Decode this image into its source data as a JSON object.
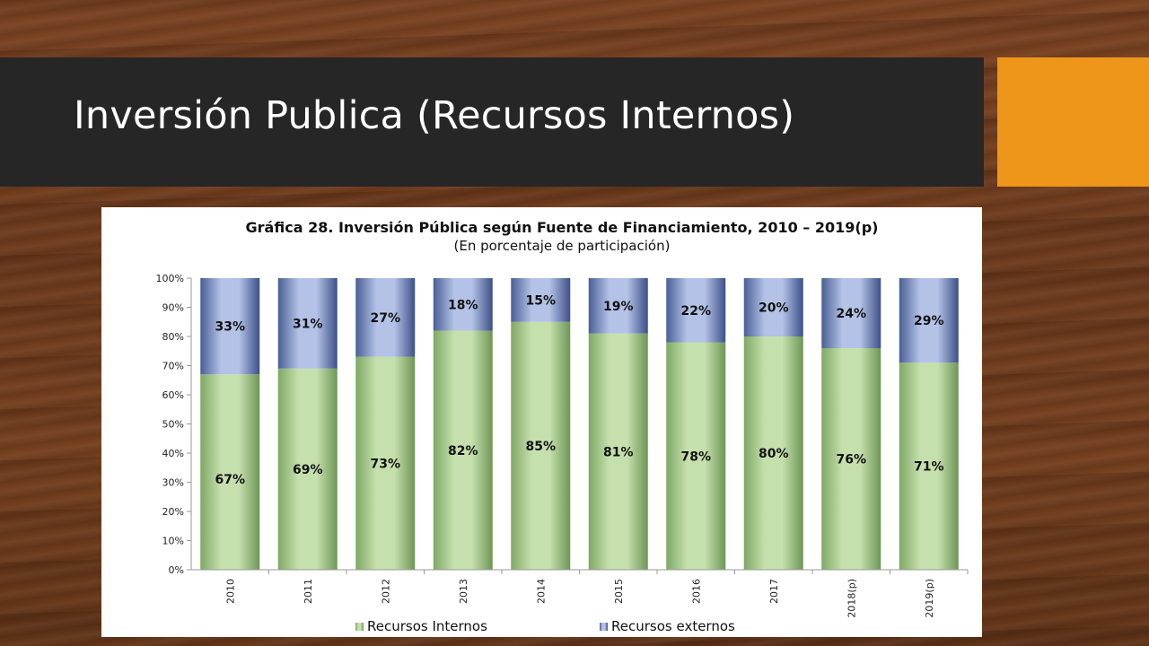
{
  "slide": {
    "title": "Inversión Publica (Recursos Internos)"
  },
  "colors": {
    "title_bar": "#262626",
    "accent": "#ee961a",
    "internal": "#a8c98a",
    "external": "#8fa3cf"
  },
  "chart_data": {
    "type": "bar",
    "stacked": true,
    "title": "Gráfica 28. Inversión Pública según Fuente de Financiamiento, 2010 – 2019(p)",
    "subtitle": "(En porcentaje de participación)",
    "categories": [
      "2010",
      "2011",
      "2012",
      "2013",
      "2014",
      "2015",
      "2016",
      "2017",
      "2018(p)",
      "2019(p)"
    ],
    "series": [
      {
        "name": "Recursos Internos",
        "values": [
          67,
          69,
          73,
          82,
          85,
          81,
          78,
          80,
          76,
          71
        ]
      },
      {
        "name": "Recursos externos",
        "values": [
          33,
          31,
          27,
          18,
          15,
          19,
          22,
          20,
          24,
          29
        ]
      }
    ],
    "value_labels": {
      "internal": [
        "67%",
        "69%",
        "73%",
        "82%",
        "85%",
        "81%",
        "78%",
        "80%",
        "76%",
        "71%"
      ],
      "external": [
        "33%",
        "31%",
        "27%",
        "18%",
        "15%",
        "19%",
        "22%",
        "20%",
        "24%",
        "29%"
      ]
    },
    "y_ticks": [
      "0%",
      "10%",
      "20%",
      "30%",
      "40%",
      "50%",
      "60%",
      "70%",
      "80%",
      "90%",
      "100%"
    ],
    "ylim": [
      0,
      100
    ],
    "legend_position": "bottom",
    "legend": [
      "Recursos Internos",
      "Recursos externos"
    ]
  }
}
